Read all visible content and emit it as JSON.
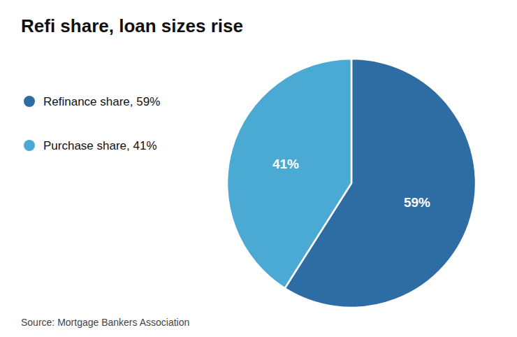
{
  "chart_data": {
    "type": "pie",
    "title": "Refi share, loan sizes rise",
    "categories": [
      "Refinance share, 59%",
      "Purchase share, 41%"
    ],
    "values": [
      59,
      41
    ],
    "value_labels": [
      "59%",
      "41%"
    ],
    "colors": [
      "#2e6da4",
      "#4baad3"
    ],
    "data_labels": true,
    "legend": "left",
    "source": "Source: Mortgage Bankers Association"
  }
}
